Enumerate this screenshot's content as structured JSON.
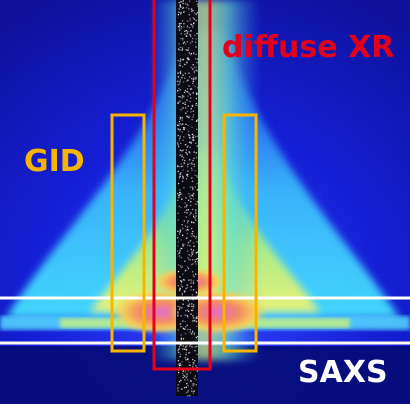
{
  "labels": {
    "diffuse": "diffuse XR",
    "gid": "GID",
    "saxs": "SAXS"
  },
  "colors": {
    "background": "#0a10c8",
    "diffuse_box": "#e3001b",
    "gid_box": "#f7b500",
    "saxs_line": "#ffffff"
  }
}
